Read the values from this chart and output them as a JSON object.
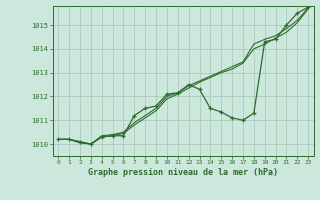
{
  "title": "Graphe pression niveau de la mer (hPa)",
  "background_color": "#cce8dc",
  "grid_color": "#aaccbb",
  "line_color": "#2d6b2d",
  "xlim": [
    -0.5,
    23.5
  ],
  "ylim": [
    1009.5,
    1015.8
  ],
  "yticks": [
    1010,
    1011,
    1012,
    1013,
    1014,
    1015
  ],
  "xticks": [
    0,
    1,
    2,
    3,
    4,
    5,
    6,
    7,
    8,
    9,
    10,
    11,
    12,
    13,
    14,
    15,
    16,
    17,
    18,
    19,
    20,
    21,
    22,
    23
  ],
  "hours": [
    0,
    1,
    2,
    3,
    4,
    5,
    6,
    7,
    8,
    9,
    10,
    11,
    12,
    13,
    14,
    15,
    16,
    17,
    18,
    19,
    20,
    21,
    22,
    23
  ],
  "p_main": [
    1010.2,
    1010.2,
    1010.1,
    1010.0,
    1010.3,
    1010.35,
    1010.35,
    1011.2,
    1011.5,
    1011.6,
    1012.1,
    1012.15,
    1012.5,
    1012.3,
    1011.5,
    1011.35,
    1011.1,
    1011.0,
    1011.3,
    1014.3,
    1014.4,
    1015.0,
    1015.5,
    1015.75
  ],
  "p_line2": [
    1010.2,
    1010.2,
    1010.1,
    1010.0,
    1010.35,
    1010.4,
    1010.5,
    1010.9,
    1011.2,
    1011.5,
    1012.0,
    1012.15,
    1012.45,
    1012.65,
    1012.85,
    1013.05,
    1013.25,
    1013.45,
    1014.2,
    1014.4,
    1014.55,
    1014.85,
    1015.2,
    1015.72
  ],
  "p_line3": [
    1010.2,
    1010.2,
    1010.05,
    1010.0,
    1010.3,
    1010.35,
    1010.45,
    1010.8,
    1011.1,
    1011.4,
    1011.9,
    1012.1,
    1012.35,
    1012.6,
    1012.8,
    1013.0,
    1013.15,
    1013.4,
    1014.0,
    1014.2,
    1014.45,
    1014.7,
    1015.1,
    1015.68
  ]
}
